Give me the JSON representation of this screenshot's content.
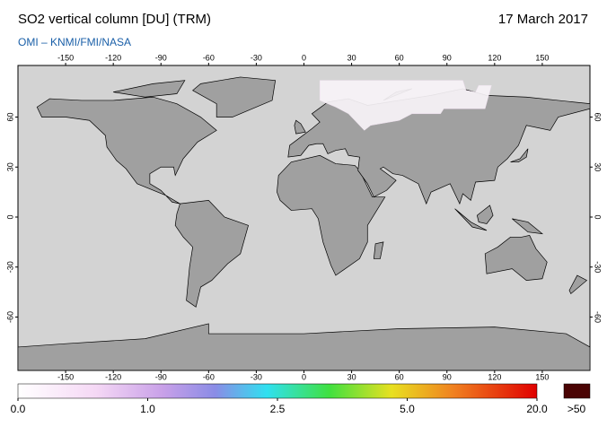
{
  "header": {
    "title": "SO2 vertical column [DU] (TRM)",
    "date": "17 March 2017",
    "source": "OMI  –  KNMI/FMI/NASA"
  },
  "map": {
    "lon_lim": [
      -180,
      180
    ],
    "lat_lim": [
      -90,
      90
    ],
    "lon_ticks": [
      -150,
      -120,
      -90,
      -60,
      -30,
      0,
      30,
      60,
      90,
      120,
      150
    ],
    "lat_ticks": [
      -60,
      -30,
      0,
      30,
      60
    ]
  },
  "colorbar": {
    "ticks": [
      {
        "value": 0,
        "label": "0.0"
      },
      {
        "value": 1,
        "label": "1.0"
      },
      {
        "value": 2.5,
        "label": "2.5"
      },
      {
        "value": 5,
        "label": "5.0"
      },
      {
        "value": 20,
        "label": "20.0"
      }
    ],
    "overflow_label": ">50",
    "overflow_color": "#4a0404"
  }
}
